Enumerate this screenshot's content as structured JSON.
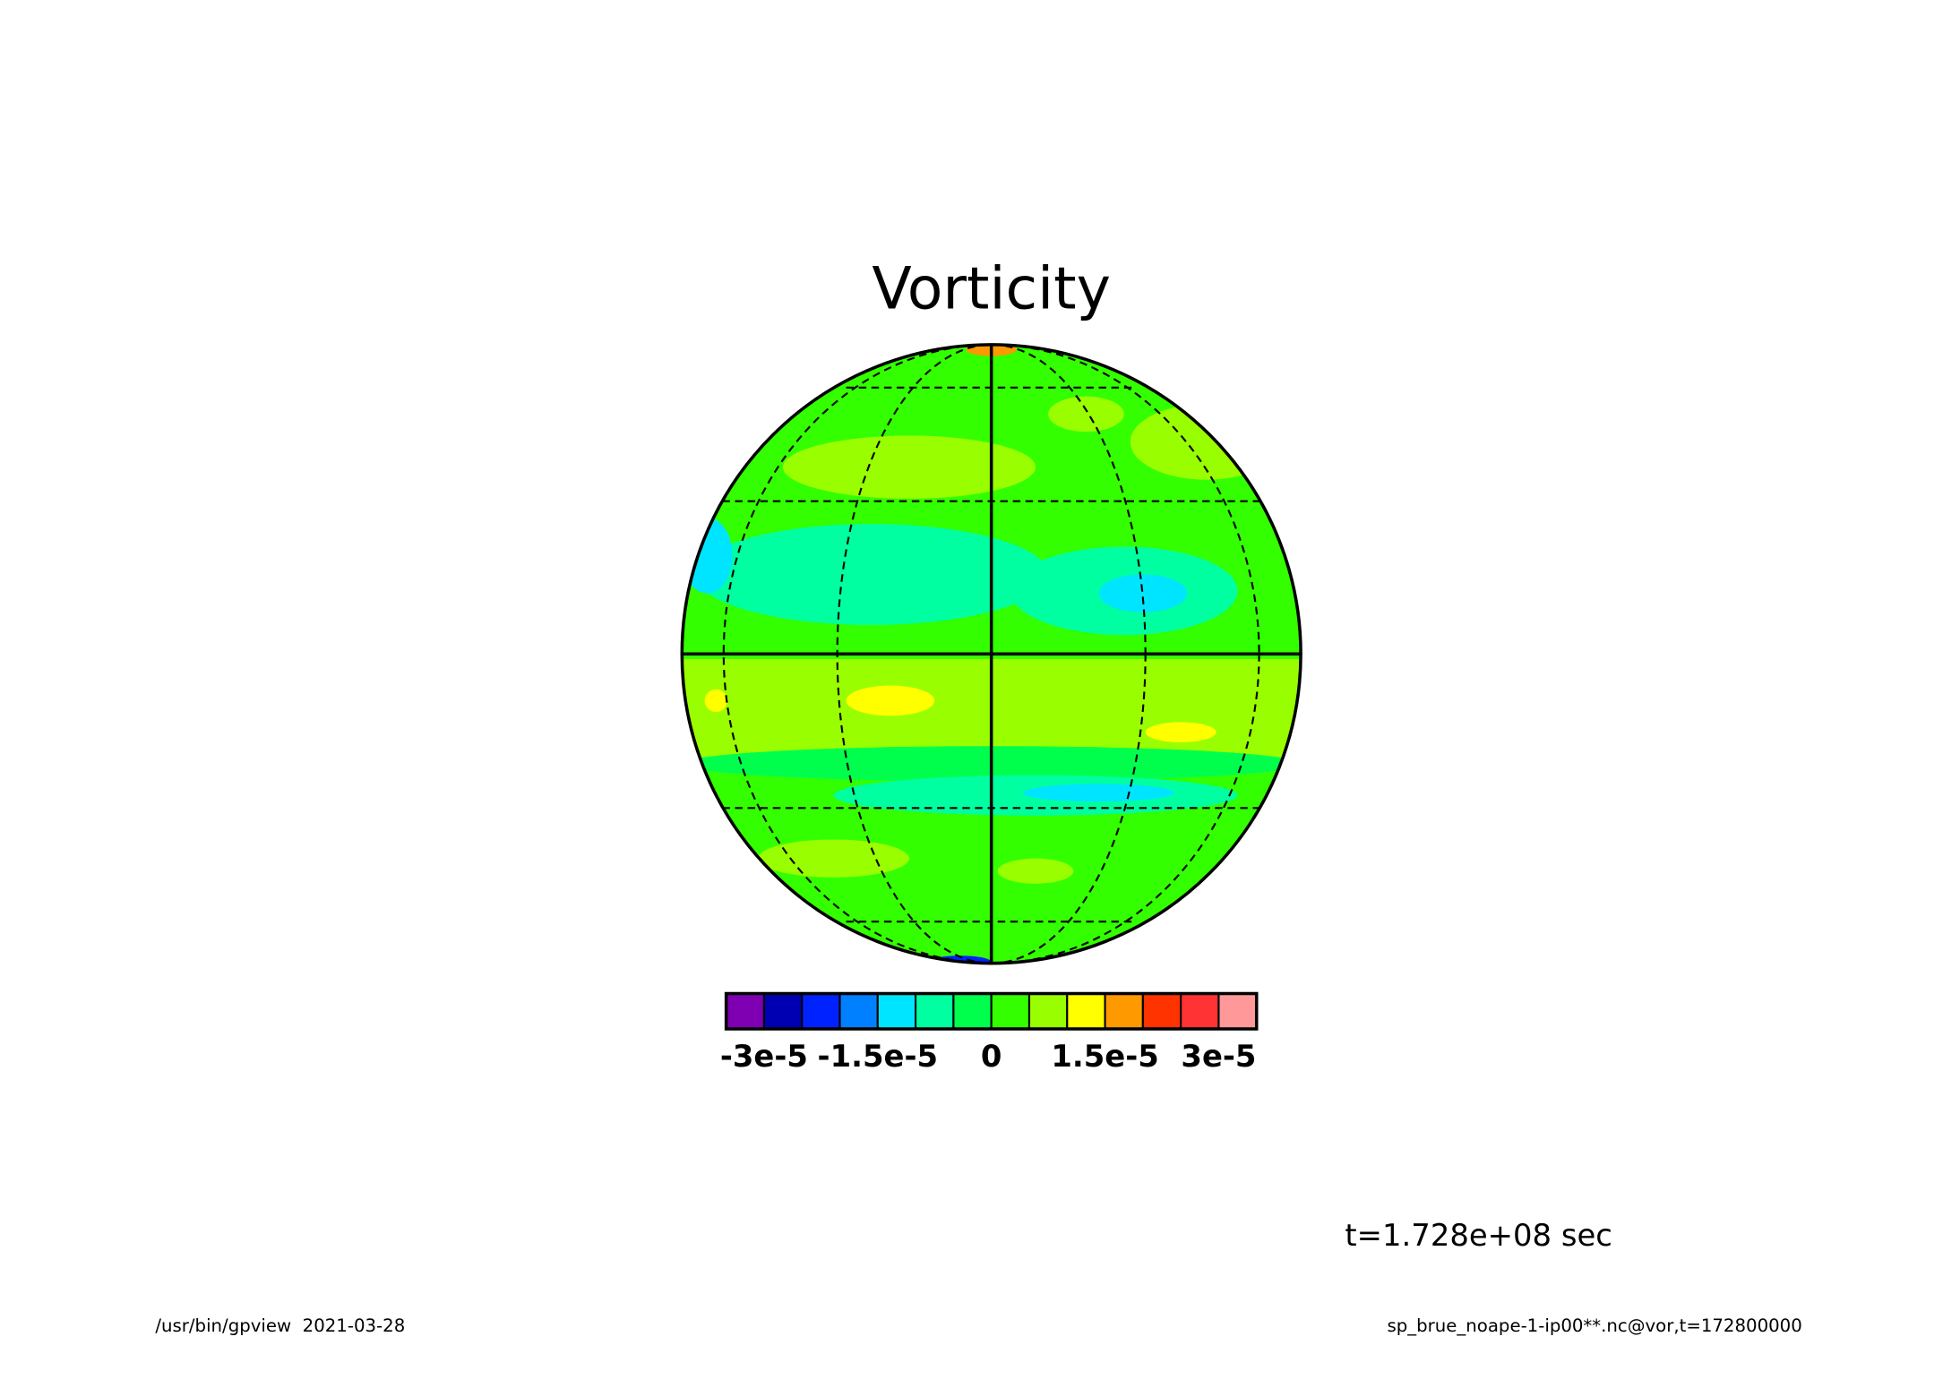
{
  "chart_data": {
    "type": "map",
    "title": "Vorticity",
    "colorbar": {
      "levels": [
        -3.5e-05,
        -3e-05,
        -2.5e-05,
        -2e-05,
        -1.5e-05,
        -1e-05,
        -5e-06,
        0,
        5e-06,
        1e-05,
        1.5e-05,
        2e-05,
        2.5e-05,
        3e-05,
        3.5e-05
      ],
      "colors": [
        "#7f00b2",
        "#0000b2",
        "#0022ff",
        "#0080ff",
        "#00e5ff",
        "#00ffa0",
        "#00ff4c",
        "#33ff00",
        "#99ff00",
        "#ffff00",
        "#ff9900",
        "#ff3300",
        "#ff3333",
        "#ff9999"
      ],
      "ticks": [
        {
          "value": -3e-05,
          "label": "-3e-5"
        },
        {
          "value": -1.5e-05,
          "label": "-1.5e-5"
        },
        0,
        {
          "value": 1.5e-05,
          "label": "1.5e-5"
        },
        {
          "value": 3e-05,
          "label": "3e-5"
        }
      ]
    },
    "annotation": "t=1.728e+08 sec",
    "footer_left": "/usr/bin/gpview  2021-03-28",
    "footer_right": "sp_brue_noape-1-ip00**.nc@vor,t=172800000"
  }
}
